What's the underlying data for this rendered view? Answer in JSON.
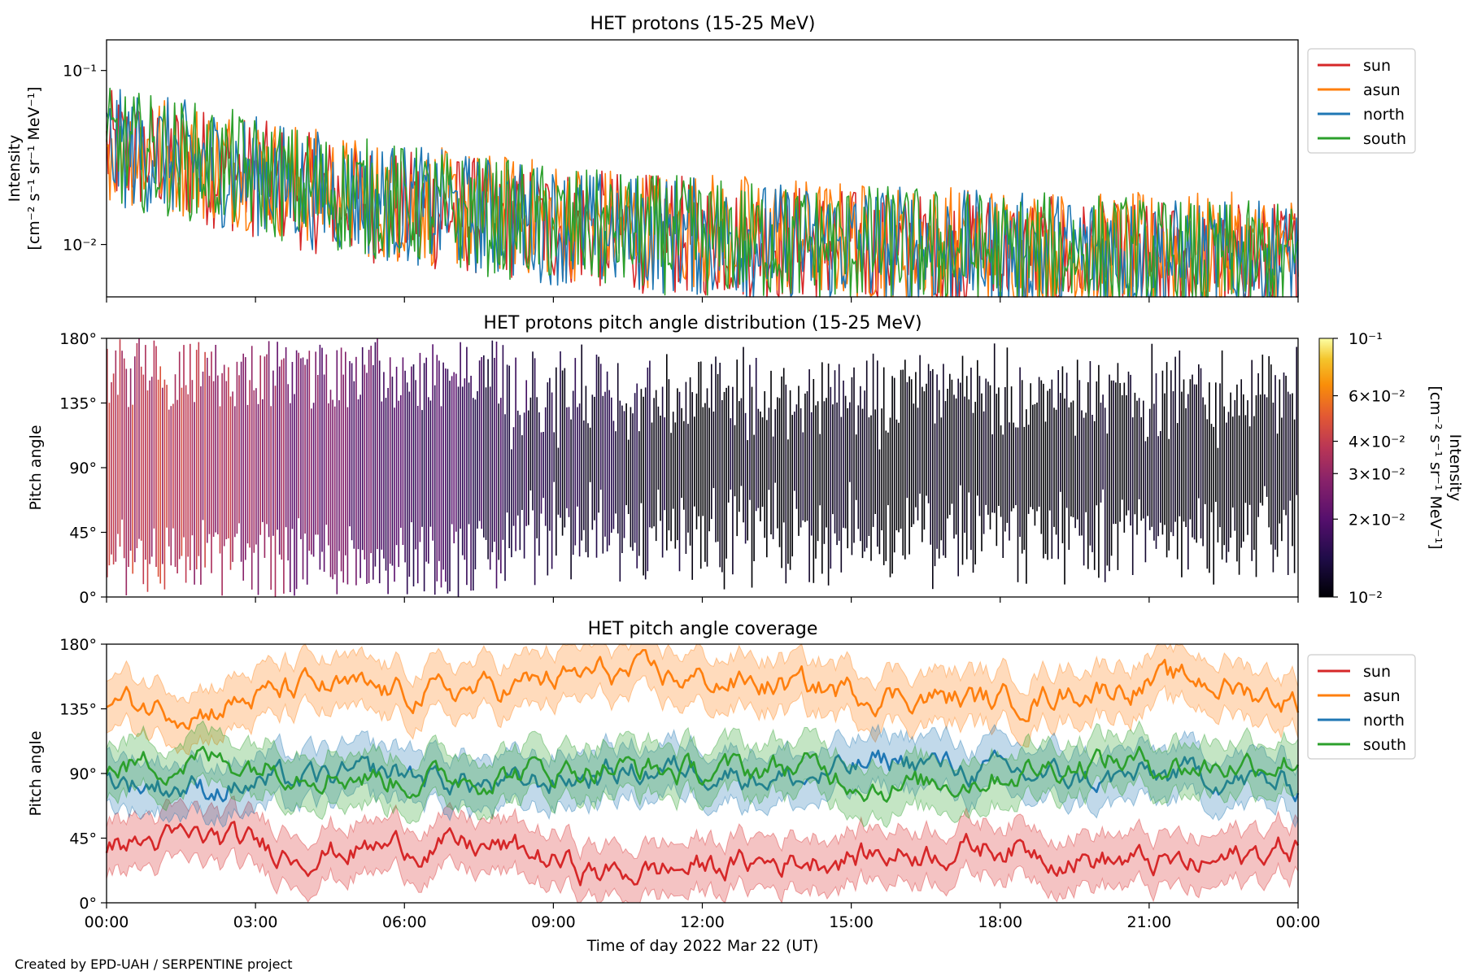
{
  "credit": "Created by EPD-UAH / SERPENTINE project",
  "colors": {
    "sun": "#d62728",
    "asun": "#ff7f0e",
    "north": "#1f77b4",
    "south": "#2ca02c"
  },
  "chart_data": [
    {
      "type": "line",
      "title": "HET protons (15-25 MeV)",
      "ylabel_lines": [
        "Intensity",
        "[cm⁻² s⁻¹ sr⁻¹ MeV⁻¹]"
      ],
      "yscale": "log",
      "ylim": [
        0.005,
        0.15
      ],
      "yticks": [
        {
          "value": 0.01,
          "label": "10⁻²"
        },
        {
          "value": 0.1,
          "label": "10⁻¹"
        }
      ],
      "legend_position": "upper-right-outside",
      "series": [
        {
          "name": "sun",
          "color": "#d62728",
          "x_hours": [
            0,
            1,
            2,
            3,
            4,
            5,
            6,
            8,
            10,
            12,
            14,
            16,
            18,
            20,
            22,
            24
          ],
          "values": [
            0.035,
            0.032,
            0.028,
            0.024,
            0.02,
            0.018,
            0.016,
            0.014,
            0.012,
            0.011,
            0.01,
            0.009,
            0.009,
            0.008,
            0.008,
            0.008
          ]
        },
        {
          "name": "asun",
          "color": "#ff7f0e",
          "x_hours": [
            0,
            1,
            2,
            3,
            4,
            5,
            6,
            8,
            10,
            12,
            14,
            16,
            18,
            20,
            22,
            24
          ],
          "values": [
            0.038,
            0.034,
            0.03,
            0.026,
            0.022,
            0.019,
            0.017,
            0.015,
            0.013,
            0.012,
            0.011,
            0.01,
            0.01,
            0.009,
            0.009,
            0.009
          ]
        },
        {
          "name": "north",
          "color": "#1f77b4",
          "x_hours": [
            0,
            1,
            2,
            3,
            4,
            5,
            6,
            8,
            10,
            12,
            14,
            16,
            18,
            20,
            22,
            24
          ],
          "values": [
            0.036,
            0.033,
            0.029,
            0.025,
            0.021,
            0.019,
            0.017,
            0.014,
            0.012,
            0.011,
            0.01,
            0.01,
            0.009,
            0.009,
            0.008,
            0.008
          ]
        },
        {
          "name": "south",
          "color": "#2ca02c",
          "x_hours": [
            0,
            1,
            2,
            3,
            4,
            5,
            6,
            8,
            10,
            12,
            14,
            16,
            18,
            20,
            22,
            24
          ],
          "values": [
            0.036,
            0.033,
            0.029,
            0.025,
            0.021,
            0.019,
            0.017,
            0.014,
            0.012,
            0.011,
            0.01,
            0.01,
            0.009,
            0.009,
            0.008,
            0.008
          ]
        }
      ]
    },
    {
      "type": "heatmap",
      "title": "HET protons pitch angle distribution (15-25 MeV)",
      "ylabel": "Pitch angle",
      "ylim": [
        0,
        180
      ],
      "yticks": [
        "0°",
        "45°",
        "90°",
        "135°",
        "180°"
      ],
      "colorbar": {
        "label": "Intensity",
        "units": "[cm⁻² s⁻¹ sr⁻¹ MeV⁻¹]",
        "scale": "log",
        "range": [
          0.01,
          0.1
        ],
        "ticks": [
          {
            "value": 0.1,
            "label": "10⁻¹"
          },
          {
            "value": 0.06,
            "label": "6×10⁻²"
          },
          {
            "value": 0.04,
            "label": "4×10⁻²"
          },
          {
            "value": 0.03,
            "label": "3×10⁻²"
          },
          {
            "value": 0.02,
            "label": "2×10⁻²"
          },
          {
            "value": 0.01,
            "label": "10⁻²"
          }
        ]
      },
      "intensity_trend": {
        "x_hours": [
          0,
          2,
          4,
          6,
          9,
          12,
          18,
          24
        ],
        "values": [
          0.04,
          0.035,
          0.025,
          0.018,
          0.013,
          0.011,
          0.01,
          0.01
        ]
      }
    },
    {
      "type": "line",
      "title": "HET pitch angle coverage",
      "ylabel": "Pitch angle",
      "xlabel": "Time of day 2022 Mar 22 (UT)",
      "ylim": [
        0,
        180
      ],
      "yticks": [
        "0°",
        "45°",
        "90°",
        "135°",
        "180°"
      ],
      "xticks": [
        "00:00",
        "03:00",
        "06:00",
        "09:00",
        "12:00",
        "15:00",
        "18:00",
        "21:00",
        "00:00"
      ],
      "legend_position": "upper-right-outside",
      "series": [
        {
          "name": "sun",
          "color": "#d62728",
          "x_hours": [
            0,
            2,
            4,
            6,
            8,
            10,
            12,
            14,
            16,
            18,
            20,
            22,
            24
          ],
          "values": [
            40,
            45,
            35,
            40,
            38,
            20,
            25,
            30,
            35,
            40,
            30,
            25,
            40
          ]
        },
        {
          "name": "asun",
          "color": "#ff7f0e",
          "x_hours": [
            0,
            2,
            4,
            6,
            8,
            10,
            12,
            14,
            16,
            18,
            20,
            22,
            24
          ],
          "values": [
            140,
            135,
            150,
            145,
            150,
            160,
            155,
            150,
            145,
            140,
            150,
            155,
            140
          ]
        },
        {
          "name": "north",
          "color": "#1f77b4",
          "x_hours": [
            0,
            2,
            4,
            6,
            8,
            10,
            12,
            14,
            16,
            18,
            20,
            22,
            24
          ],
          "values": [
            85,
            80,
            85,
            90,
            80,
            90,
            95,
            85,
            100,
            90,
            85,
            90,
            80
          ]
        },
        {
          "name": "south",
          "color": "#2ca02c",
          "x_hours": [
            0,
            2,
            4,
            6,
            8,
            10,
            12,
            14,
            16,
            18,
            20,
            22,
            24
          ],
          "values": [
            95,
            100,
            95,
            85,
            90,
            95,
            90,
            95,
            80,
            90,
            100,
            95,
            100
          ]
        }
      ]
    }
  ]
}
